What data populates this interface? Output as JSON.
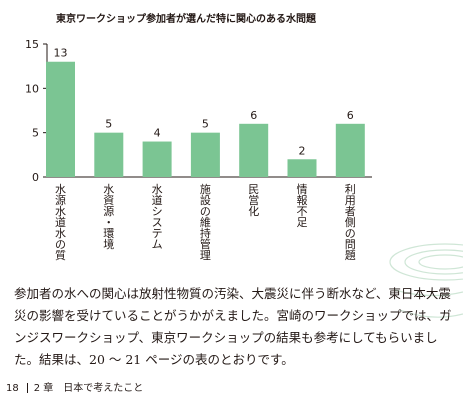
{
  "chart_data": {
    "type": "bar",
    "title": "東京ワークショップ参加者が選んだ特に関心のある水問題",
    "categories": [
      "水源水道水の質",
      "水資源・環境",
      "水道システム",
      "施設の維持管理",
      "民営化",
      "情報不足",
      "利用者側の問題"
    ],
    "values": [
      13,
      5,
      4,
      5,
      6,
      2,
      6
    ],
    "yticks": [
      0,
      5,
      10,
      15
    ],
    "ylim": [
      0,
      15
    ],
    "bar_color": "#7bc593",
    "grid": false
  },
  "body": {
    "paragraph": "参加者の水への関心は放射性物質の汚染、大震災に伴う断水など、東日本大震災の影響を受けていることがうかがえました。宮崎のワークショップでは、ガンジスワークショップ、東京ワークショップの結果も参考にしてもらいました。結果は、20 〜 21 ページの表のとおりです。"
  },
  "footer": {
    "page_number": "18",
    "chapter": "2 章　日本で考えたこと"
  }
}
